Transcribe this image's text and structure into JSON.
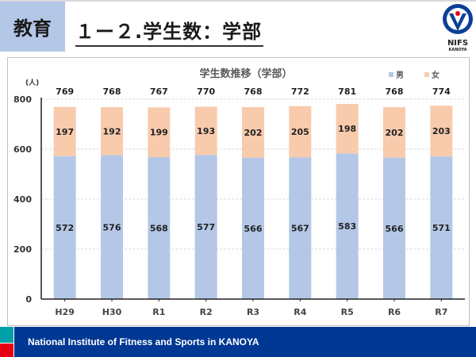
{
  "header": {
    "category": "教育",
    "title": "１ー２.学生数：学部",
    "logo": {
      "top_text": "KANOYA",
      "name": "NIFS",
      "sub": "KANOYA"
    }
  },
  "chart_data": {
    "type": "bar",
    "stacked": true,
    "title": "学生数推移（学部）",
    "ylabel": "(人)",
    "ylim": [
      0,
      800
    ],
    "yticks": [
      0,
      200,
      400,
      600,
      800
    ],
    "grid": true,
    "legend_position": "top-right",
    "categories": [
      "H29",
      "H30",
      "R1",
      "R2",
      "R3",
      "R4",
      "R5",
      "R6",
      "R7"
    ],
    "series": [
      {
        "name": "男",
        "color": "#b4c7e7",
        "values": [
          572,
          576,
          568,
          577,
          566,
          567,
          583,
          566,
          571
        ]
      },
      {
        "name": "女",
        "color": "#f8cbad",
        "values": [
          197,
          192,
          199,
          193,
          202,
          205,
          198,
          202,
          203
        ]
      }
    ],
    "totals": [
      769,
      768,
      767,
      770,
      768,
      772,
      781,
      768,
      774
    ]
  },
  "footer": {
    "text": "National Institute of Fitness and Sports in KANOYA"
  },
  "colors": {
    "header_box": "#b4c7e7",
    "footer": "#003893",
    "teal": "#00a0a8",
    "red": "#e60012"
  }
}
